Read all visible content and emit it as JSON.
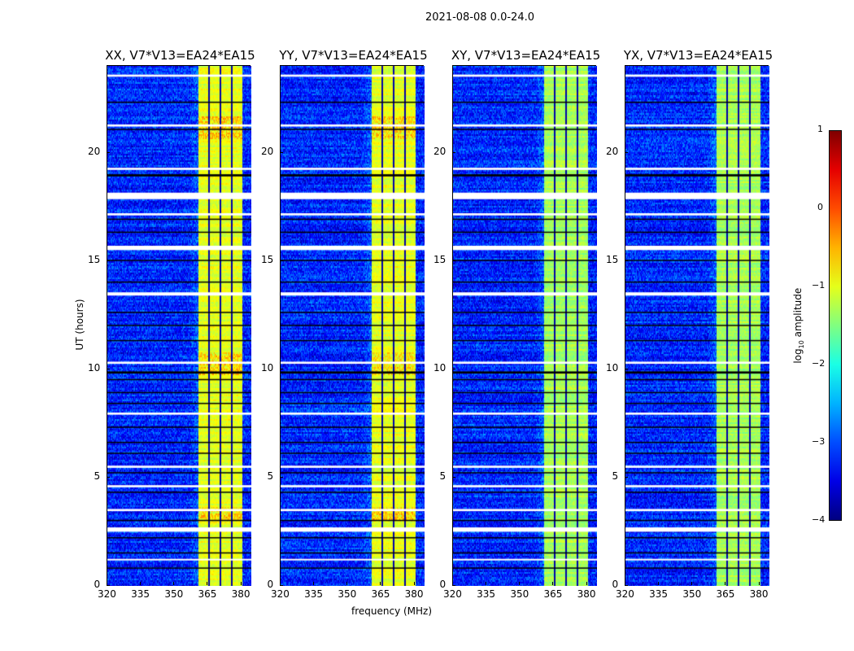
{
  "suptitle": "2021-08-08 0.0-24.0",
  "chart_data": {
    "type": "heatmap",
    "panels": [
      {
        "title": "XX, V7*V13=EA24*EA15",
        "polarization": "XX"
      },
      {
        "title": "YY, V7*V13=EA24*EA15",
        "polarization": "YY"
      },
      {
        "title": "XY, V7*V13=EA24*EA15",
        "polarization": "XY"
      },
      {
        "title": "YX, V7*V13=EA24*EA15",
        "polarization": "YX"
      }
    ],
    "xlabel": "frequency (MHz)",
    "ylabel": "UT (hours)",
    "xlim": [
      320,
      384.5
    ],
    "ylim": [
      0,
      24
    ],
    "xticks": [
      "320",
      "335",
      "350",
      "365",
      "380"
    ],
    "xtick_values": [
      320,
      335,
      350,
      365,
      380
    ],
    "yticks": [
      "0",
      "5",
      "10",
      "15",
      "20"
    ],
    "ytick_values": [
      0,
      5,
      10,
      15,
      20
    ],
    "colorbar": {
      "label": "log10 amplitude",
      "label_main": "log",
      "label_sub": "10",
      "label_rest": " amplitude",
      "range": [
        -4,
        1
      ],
      "ticks": [
        "−4",
        "−3",
        "−2",
        "−1",
        "0",
        "1"
      ],
      "tick_values": [
        -4,
        -3,
        -2,
        -1,
        0,
        1
      ],
      "colormap": "jet"
    },
    "background_level_log10": -3.2,
    "bright_band_mhz": [
      360.7,
      380.4
    ],
    "bright_band_level_log10": -1.0,
    "channel_gaps_mhz": [
      365.2,
      370.5,
      375.6
    ],
    "flagged_hours_white": [
      [
        23.5,
        23.6
      ],
      [
        21.2,
        21.3
      ],
      [
        19.2,
        19.3
      ],
      [
        17.85,
        18.15
      ],
      [
        17.1,
        17.2
      ],
      [
        15.5,
        15.7
      ],
      [
        13.4,
        13.55
      ],
      [
        10.25,
        10.35
      ],
      [
        7.9,
        8.0
      ],
      [
        5.45,
        5.55
      ],
      [
        4.55,
        4.65
      ],
      [
        3.45,
        3.55
      ],
      [
        2.5,
        2.7
      ],
      [
        1.2,
        1.25
      ]
    ],
    "flagged_hours_black": [
      [
        22.3,
        22.35
      ],
      [
        21.05,
        21.1
      ],
      [
        18.9,
        19.0
      ],
      [
        16.9,
        16.95
      ],
      [
        16.3,
        16.35
      ],
      [
        15.0,
        15.05
      ],
      [
        14.0,
        14.05
      ],
      [
        12.6,
        12.65
      ],
      [
        12.0,
        12.05
      ],
      [
        11.3,
        11.35
      ],
      [
        9.8,
        9.9
      ],
      [
        9.5,
        9.55
      ],
      [
        8.9,
        8.95
      ],
      [
        8.4,
        8.45
      ],
      [
        7.3,
        7.35
      ],
      [
        6.6,
        6.65
      ],
      [
        6.1,
        6.15
      ],
      [
        5.2,
        5.25
      ],
      [
        4.3,
        4.35
      ],
      [
        3.0,
        3.05
      ],
      [
        2.2,
        2.25
      ],
      [
        1.5,
        1.55
      ],
      [
        0.8,
        0.85
      ]
    ]
  }
}
